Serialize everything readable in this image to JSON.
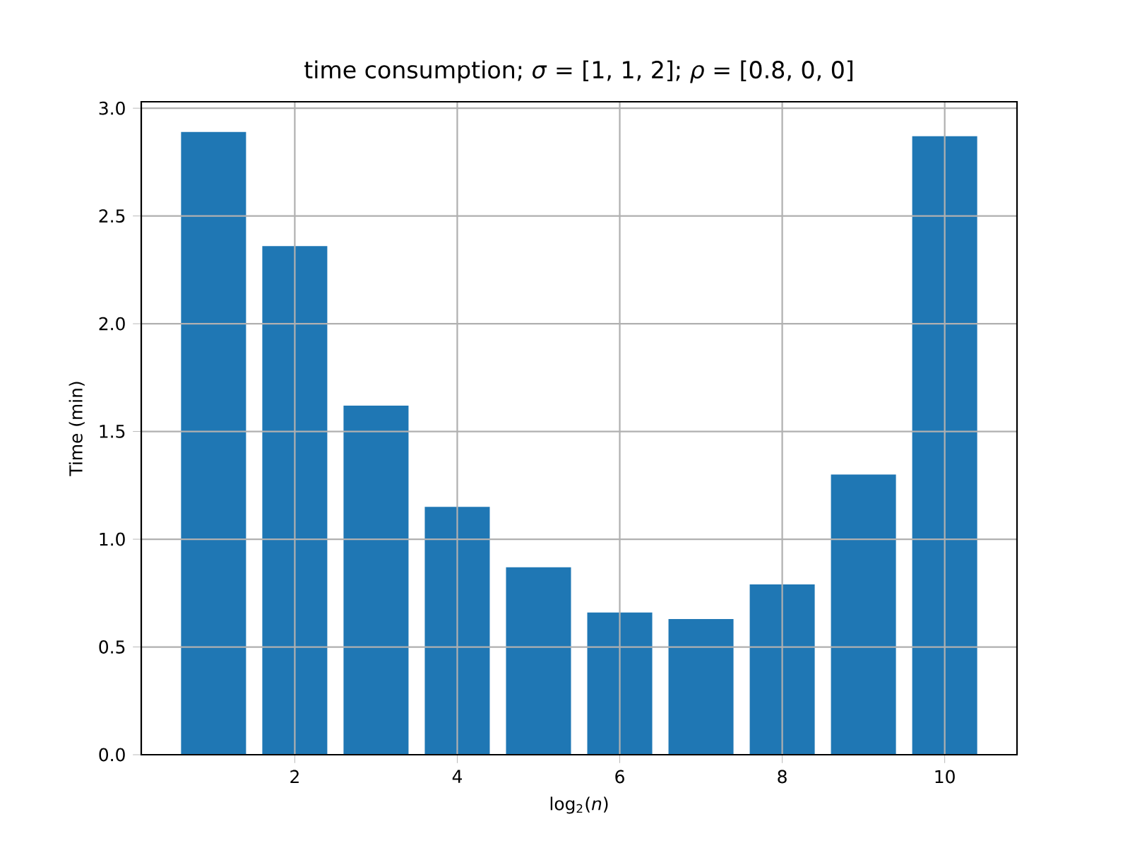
{
  "chart_data": {
    "type": "bar",
    "title": "time consumption;  *σ* = [1, 1, 2];  *ρ* = [0.8, 0, 0]",
    "xlabel": "log$_{2}$(*n*)",
    "ylabel": "Time (min)",
    "x": [
      1,
      2,
      3,
      4,
      5,
      6,
      7,
      8,
      9,
      10
    ],
    "values": [
      2.89,
      2.36,
      1.62,
      1.15,
      0.87,
      0.66,
      0.63,
      0.79,
      1.3,
      2.87
    ],
    "color": "#1f77b4",
    "xlim": [
      0.11,
      10.89
    ],
    "ylim": [
      0,
      3.03
    ],
    "xticks": [
      2,
      4,
      6,
      8,
      10
    ],
    "yticks": [
      {
        "value": 0,
        "label": "0.0"
      },
      0.5,
      {
        "value": 1,
        "label": "1.0"
      },
      1.5,
      {
        "value": 2,
        "label": "2.0"
      },
      2.5,
      {
        "value": 3,
        "label": "3.0"
      }
    ],
    "grid": true
  }
}
